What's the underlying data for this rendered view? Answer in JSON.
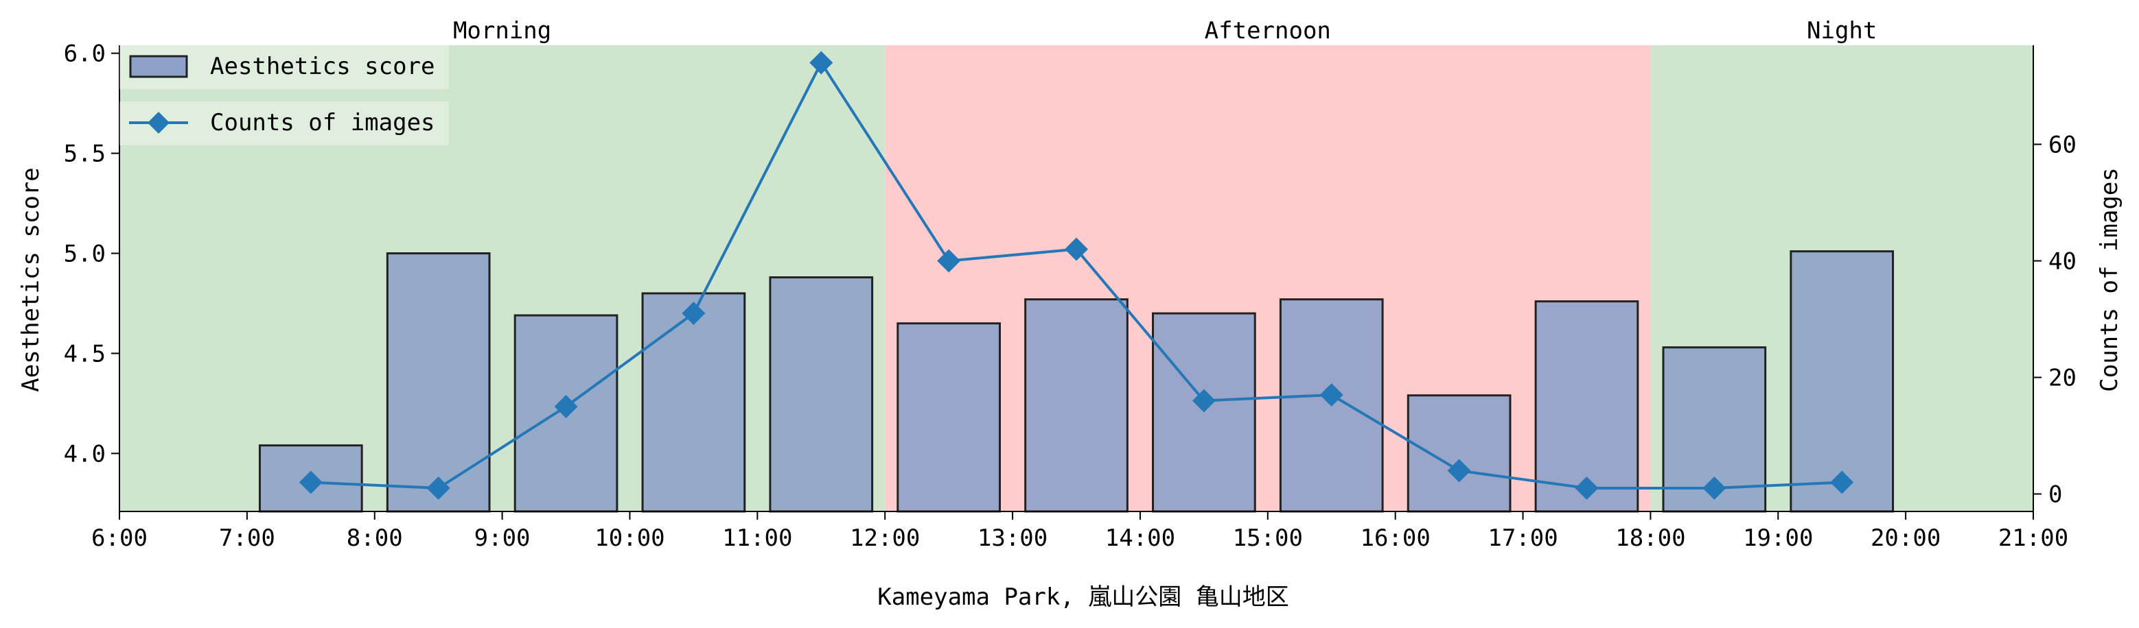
{
  "chart_data": {
    "type": "bar+line",
    "xlabel": "Kameyama Park, 嵐山公園 亀山地区",
    "ylabel_left": "Aesthetics score",
    "ylabel_right": "Counts of images",
    "x_ticks": [
      "6:00",
      "7:00",
      "8:00",
      "9:00",
      "10:00",
      "11:00",
      "12:00",
      "13:00",
      "14:00",
      "15:00",
      "16:00",
      "17:00",
      "18:00",
      "19:00",
      "20:00",
      "21:00"
    ],
    "x_range_hours": [
      6,
      21
    ],
    "ylim_left": [
      3.71,
      6.04
    ],
    "yticks_left": [
      "4.0",
      "4.5",
      "5.0",
      "5.5",
      "6.0"
    ],
    "ylim_right": [
      -3,
      77
    ],
    "yticks_right": [
      "0",
      "20",
      "40",
      "60"
    ],
    "periods": [
      {
        "label": "Morning",
        "start_hour": 6,
        "end_hour": 12,
        "color": "#cfe5cd"
      },
      {
        "label": "Afternoon",
        "start_hour": 12,
        "end_hour": 18,
        "color": "#fecccd"
      },
      {
        "label": "Night",
        "start_hour": 18,
        "end_hour": 21,
        "color": "#cfe5cd"
      }
    ],
    "bar_centers": [
      7.5,
      8.5,
      9.5,
      10.5,
      11.5,
      12.5,
      13.5,
      14.5,
      15.5,
      16.5,
      17.5,
      18.5,
      19.5
    ],
    "series": [
      {
        "name": "Aesthetics score",
        "type": "bar",
        "axis": "left",
        "color": "#8ea2c9",
        "values": [
          4.04,
          5.0,
          4.69,
          4.8,
          4.88,
          4.65,
          4.77,
          4.7,
          4.77,
          4.29,
          4.76,
          4.53,
          5.01
        ]
      },
      {
        "name": "Counts of images",
        "type": "line",
        "axis": "right",
        "color": "#2478b8",
        "marker": "diamond",
        "values": [
          2,
          1,
          15,
          31,
          74,
          40,
          42,
          16,
          17,
          4,
          1,
          1,
          2
        ]
      }
    ],
    "legend": "top-left",
    "grid": false
  }
}
